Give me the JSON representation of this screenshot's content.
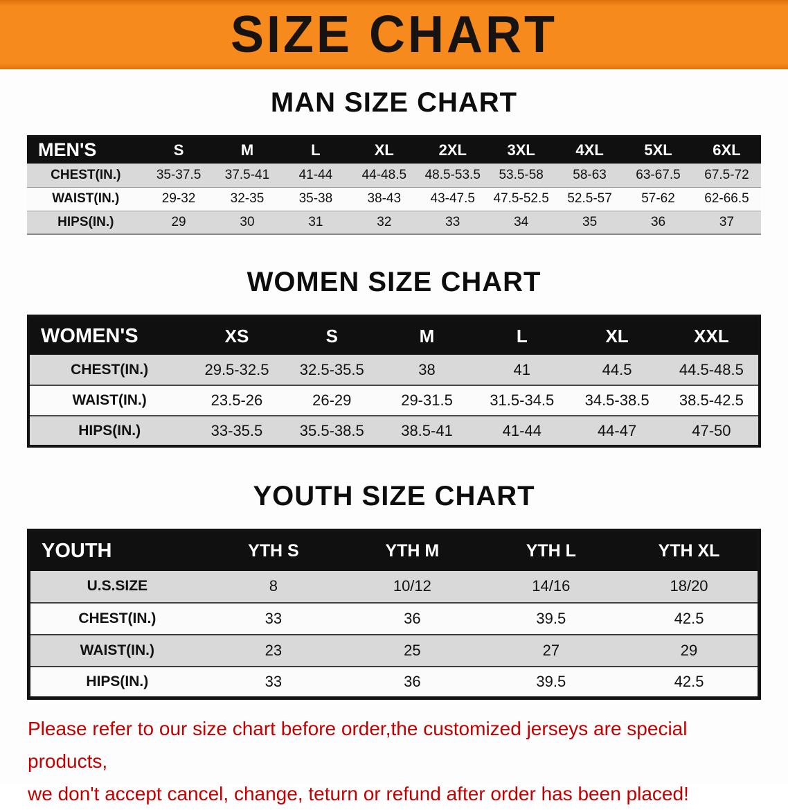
{
  "banner": {
    "title": "SIZE CHART",
    "bg_color": "#F78A1D",
    "text_color": "#161311"
  },
  "sections": {
    "men": {
      "heading": "MAN SIZE CHART",
      "table": {
        "header": [
          "MEN'S",
          "S",
          "M",
          "L",
          "XL",
          "2XL",
          "3XL",
          "4XL",
          "5XL",
          "6XL"
        ],
        "rows": [
          [
            "CHEST(IN.)",
            "35-37.5",
            "37.5-41",
            "41-44",
            "44-48.5",
            "48.5-53.5",
            "53.5-58",
            "58-63",
            "63-67.5",
            "67.5-72"
          ],
          [
            "WAIST(IN.)",
            "29-32",
            "32-35",
            "35-38",
            "38-43",
            "43-47.5",
            "47.5-52.5",
            "52.5-57",
            "57-62",
            "62-66.5"
          ],
          [
            "HIPS(IN.)",
            "29",
            "30",
            "31",
            "32",
            "33",
            "34",
            "35",
            "36",
            "37"
          ]
        ]
      }
    },
    "women": {
      "heading": "WOMEN SIZE CHART",
      "table": {
        "header": [
          "WOMEN'S",
          "XS",
          "S",
          "M",
          "L",
          "XL",
          "XXL"
        ],
        "rows": [
          [
            "CHEST(IN.)",
            "29.5-32.5",
            "32.5-35.5",
            "38",
            "41",
            "44.5",
            "44.5-48.5"
          ],
          [
            "WAIST(IN.)",
            "23.5-26",
            "26-29",
            "29-31.5",
            "31.5-34.5",
            "34.5-38.5",
            "38.5-42.5"
          ],
          [
            "HIPS(IN.)",
            "33-35.5",
            "35.5-38.5",
            "38.5-41",
            "41-44",
            "44-47",
            "47-50"
          ]
        ]
      }
    },
    "youth": {
      "heading": "YOUTH SIZE CHART",
      "table": {
        "header": [
          "YOUTH",
          "YTH S",
          "YTH M",
          "YTH L",
          "YTH XL"
        ],
        "rows": [
          [
            "U.S.SIZE",
            "8",
            "10/12",
            "14/16",
            "18/20"
          ],
          [
            "CHEST(IN.)",
            "33",
            "36",
            "39.5",
            "42.5"
          ],
          [
            "WAIST(IN.)",
            "23",
            "25",
            "27",
            "29"
          ],
          [
            "HIPS(IN.)",
            "33",
            "36",
            "39.5",
            "42.5"
          ]
        ]
      }
    }
  },
  "footer": {
    "line1": "Please refer to our size chart before order,the customized jerseys are special products,",
    "line2": "we don't accept cancel, change, teturn or refund after order has been placed!",
    "text_color": "#C30000"
  }
}
